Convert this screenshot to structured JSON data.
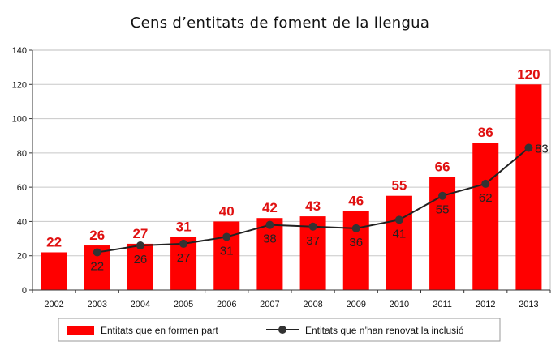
{
  "chart_data": {
    "type": "bar",
    "title": "Cens d’entitats de foment de la llengua",
    "categories": [
      "2002",
      "2003",
      "2004",
      "2005",
      "2006",
      "2007",
      "2008",
      "2009",
      "2010",
      "2011",
      "2012",
      "2013"
    ],
    "series": [
      {
        "name": "Entitats que en formen part",
        "type": "bar",
        "color": "#ff0000",
        "values": [
          22,
          26,
          27,
          31,
          40,
          42,
          43,
          46,
          55,
          66,
          86,
          120
        ]
      },
      {
        "name": "Entitats que n’han renovat la inclusió",
        "type": "line",
        "color": "#222222",
        "values": [
          null,
          22,
          26,
          27,
          31,
          38,
          37,
          36,
          41,
          55,
          62,
          83
        ]
      }
    ],
    "ylim": [
      0,
      140
    ],
    "yticks": [
      0,
      20,
      40,
      60,
      80,
      100,
      120,
      140
    ],
    "grid": true,
    "legend": "bottom"
  }
}
